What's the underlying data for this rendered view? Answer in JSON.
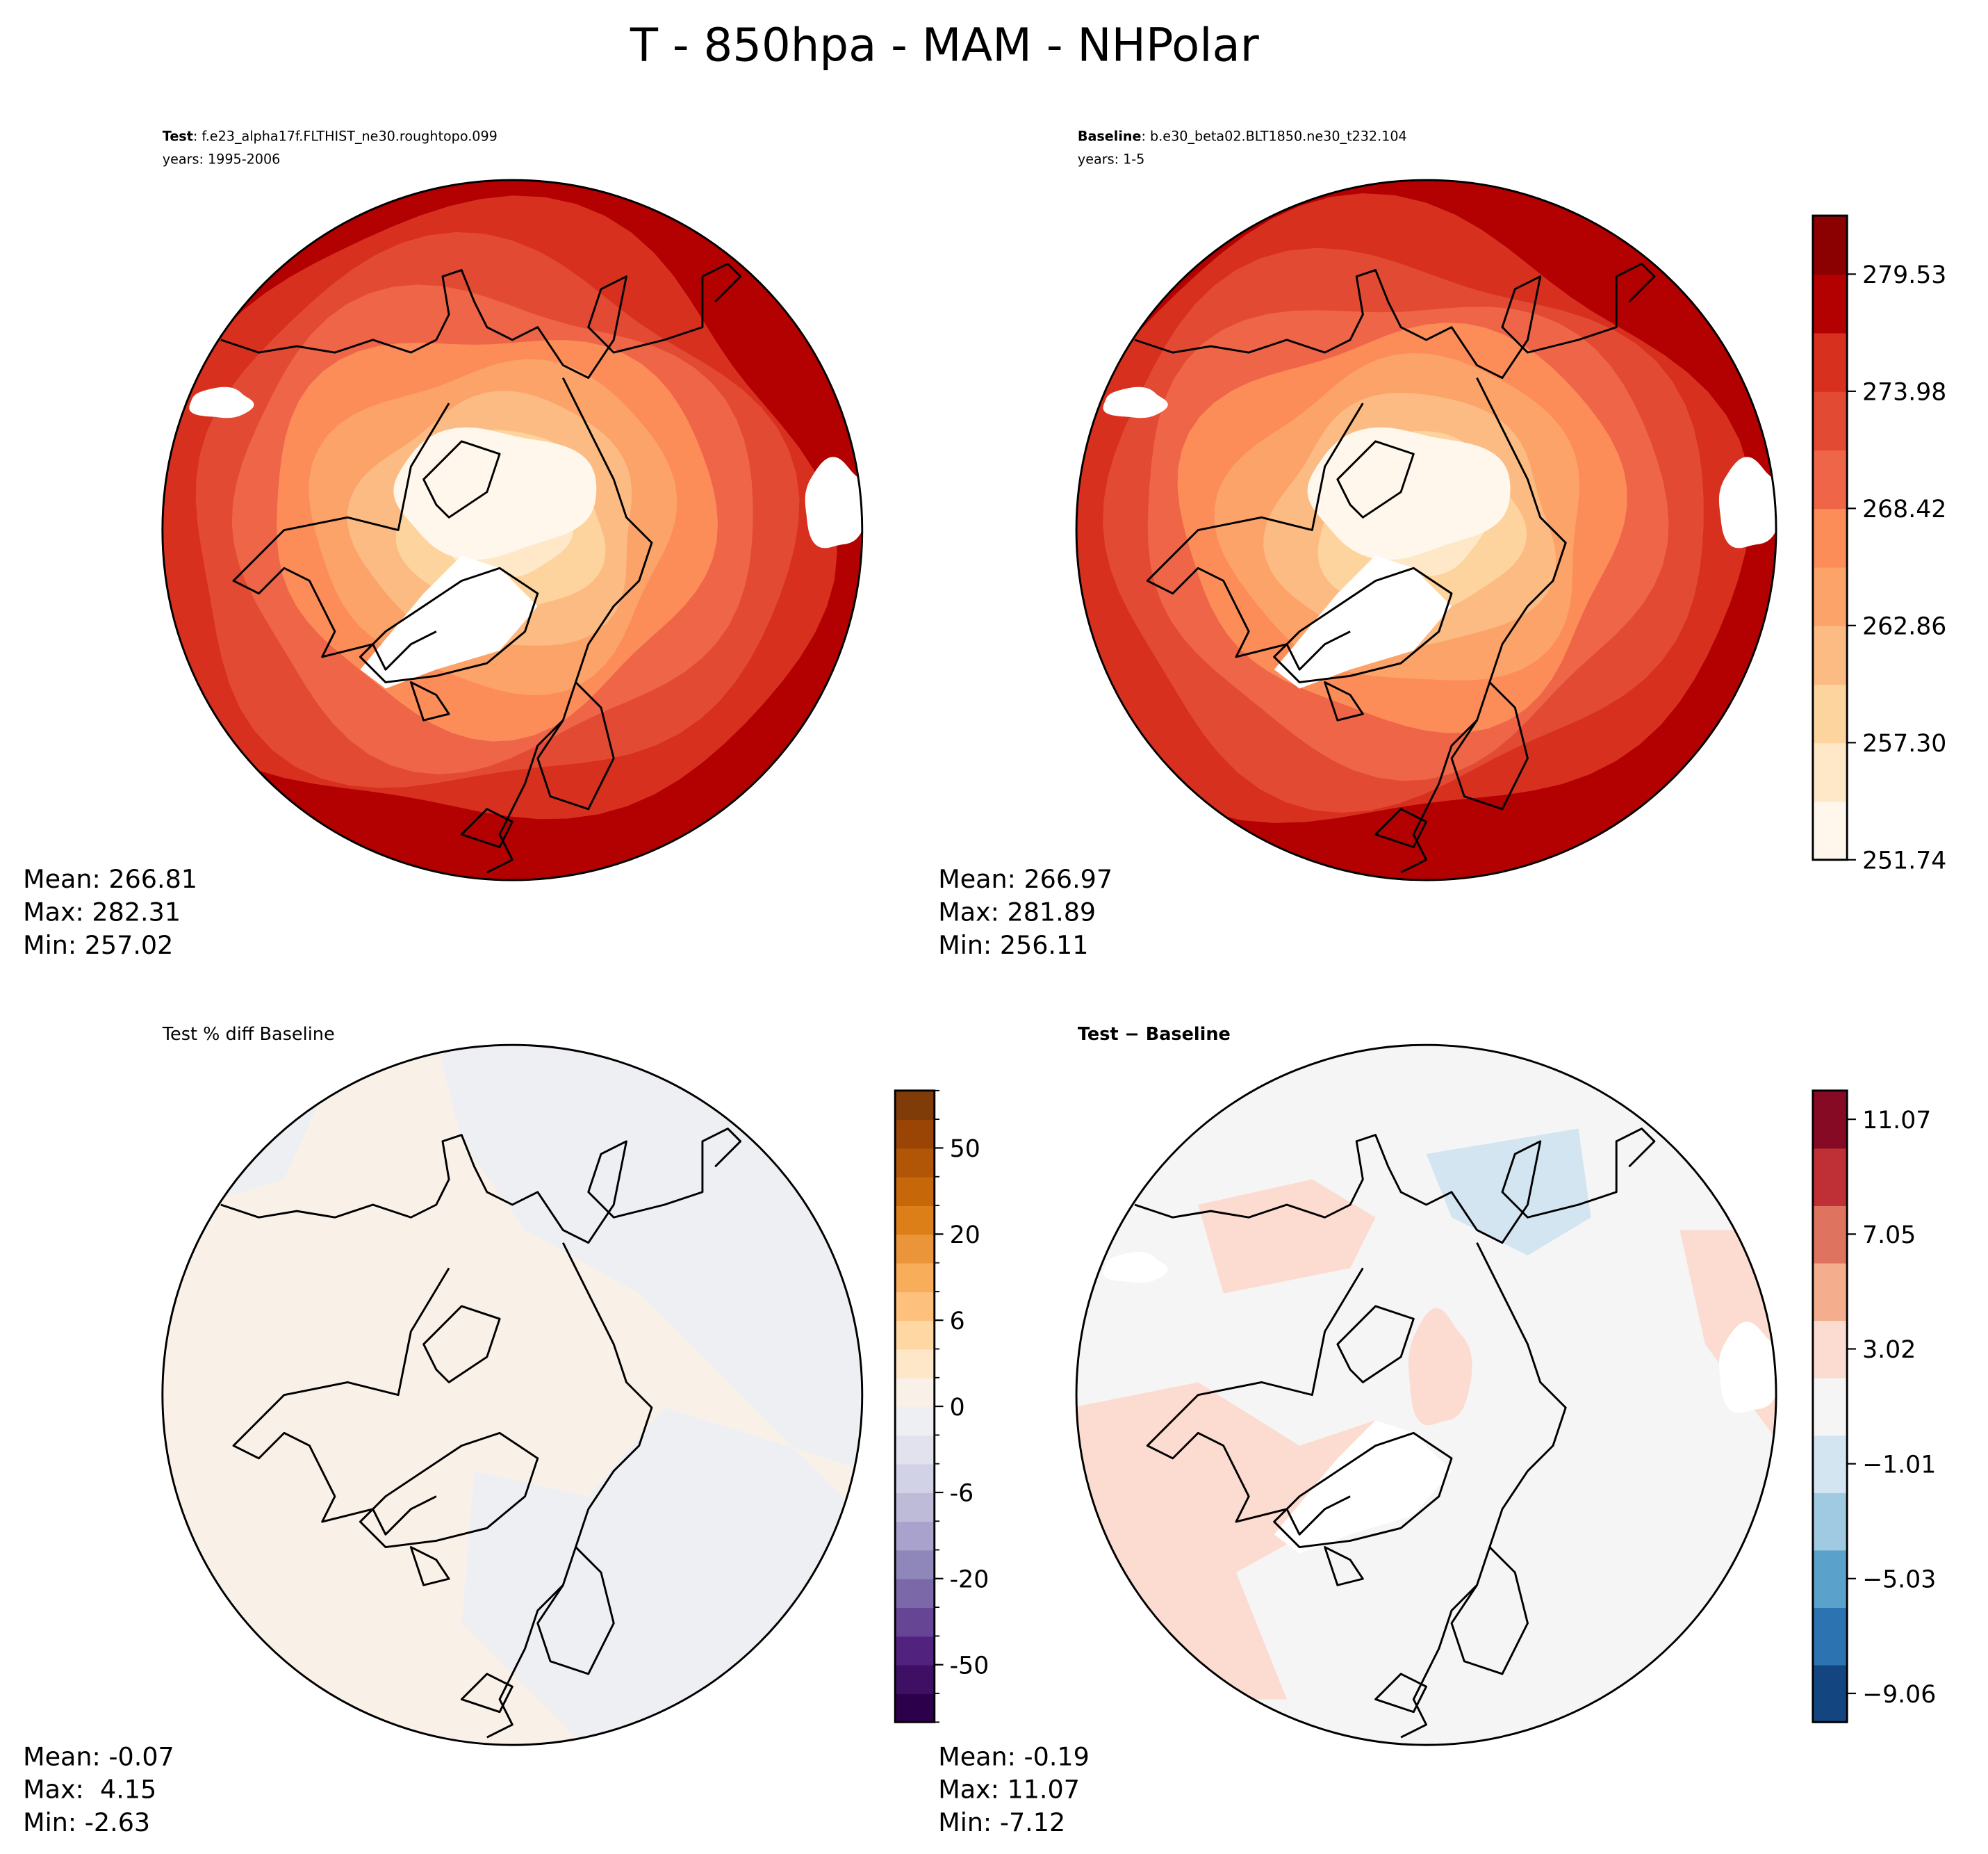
{
  "chart_data": {
    "type": "heatmap",
    "title": "T - 850hpa - MAM - NHPolar",
    "panels": [
      {
        "id": "test",
        "title_bold": "Test",
        "title_rest": ": f.e23_alpha17f.FLTHIST_ne30.roughtopo.099",
        "subtitle": "years: 1995-2006",
        "stats": {
          "mean": "Mean: 266.81",
          "max": "Max: 282.31",
          "min": "Min: 257.02"
        },
        "projection": "north-polar-stereographic",
        "colorbar": false
      },
      {
        "id": "baseline",
        "title_bold": "Baseline",
        "title_rest": ": b.e30_beta02.BLT1850.ne30_t232.104",
        "subtitle": "years: 1-5",
        "stats": {
          "mean": "Mean: 266.97",
          "max": "Max: 281.89",
          "min": "Min: 256.11"
        },
        "projection": "north-polar-stereographic",
        "colorbar": true,
        "colorbar_range": [
          251.74,
          282.31
        ],
        "colorbar_ticks": [
          "251.74",
          "257.30",
          "262.86",
          "268.42",
          "273.98",
          "279.53"
        ],
        "colormap": [
          "#fff7ec",
          "#fee8c8",
          "#fdd49e",
          "#fdbb84",
          "#fca369",
          "#fc8d59",
          "#ef6548",
          "#e34a33",
          "#d7301f",
          "#b30000",
          "#8b0000"
        ]
      },
      {
        "id": "pct-diff",
        "title": "Test % diff Baseline",
        "stats": {
          "mean": "Mean: -0.07",
          "max": "Max:  4.15",
          "min": "Min: -2.63"
        },
        "projection": "north-polar-stereographic",
        "colorbar": true,
        "colorbar_ticks": [
          "-50",
          "-20",
          "-6",
          "0",
          "6",
          "20",
          "50"
        ],
        "colormap": [
          "#2d004b",
          "#3f0f63",
          "#52227f",
          "#664595",
          "#7a68a8",
          "#8f86b9",
          "#a9a2cc",
          "#bebbd9",
          "#d2d2e6",
          "#e2e2ee",
          "#eeeff3",
          "#f9f1e8",
          "#fee6c9",
          "#fed7a3",
          "#fdc17d",
          "#f7ad5a",
          "#eb953a",
          "#dc7f18",
          "#c66709",
          "#b15506",
          "#9a4505",
          "#7f3b08"
        ]
      },
      {
        "id": "diff",
        "title": "Test − Baseline",
        "stats": {
          "mean": "Mean: -0.19",
          "max": "Max: 11.07",
          "min": "Min: -7.12"
        },
        "projection": "north-polar-stereographic",
        "colorbar": true,
        "colorbar_ticks": [
          "−9.06",
          "−5.03",
          "−1.01",
          "3.02",
          "7.05",
          "11.07"
        ],
        "colormap": [
          "#134680",
          "#2c73b2",
          "#5aa1cb",
          "#9fcae1",
          "#d3e5f1",
          "#f5f5f5",
          "#fcdcd0",
          "#f4ae8e",
          "#de7460",
          "#bf2f36",
          "#870a24"
        ]
      }
    ]
  }
}
